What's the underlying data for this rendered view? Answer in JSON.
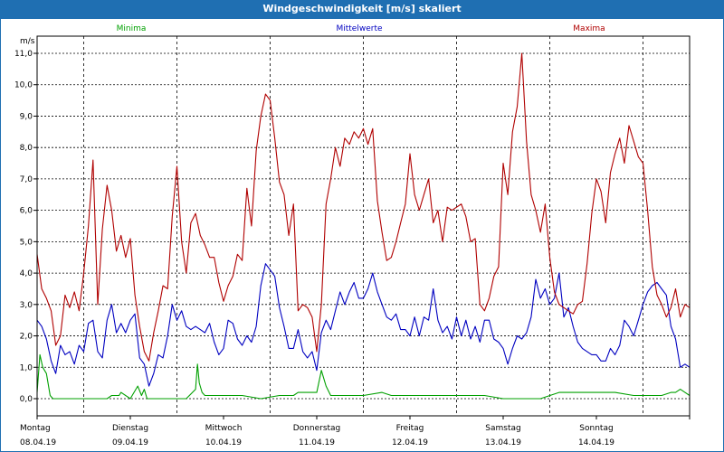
{
  "chart_data": {
    "type": "line",
    "title": "Windgeschwindigkeit [m/s] skaliert",
    "unit": "m/s",
    "ylim": [
      0,
      11.5
    ],
    "yticks": [
      "0,0",
      "1,0",
      "2,0",
      "3,0",
      "4,0",
      "5,0",
      "6,0",
      "7,0",
      "8,0",
      "9,0",
      "10,0",
      "11,0"
    ],
    "xlim": [
      0,
      7
    ],
    "days": [
      {
        "day": "Montag",
        "date": "08.04.19"
      },
      {
        "day": "Dienstag",
        "date": "09.04.19"
      },
      {
        "day": "Mittwoch",
        "date": "10.04.19"
      },
      {
        "day": "Donnerstag",
        "date": "11.04.19"
      },
      {
        "day": "Freitag",
        "date": "12.04.19"
      },
      {
        "day": "Samstag",
        "date": "13.04.19"
      },
      {
        "day": "Sonntag",
        "date": "14.04.19"
      }
    ],
    "grid": true,
    "series": [
      {
        "name": "Minima",
        "color": "#00a000",
        "x": [
          0,
          0.03,
          0.06,
          0.1,
          0.14,
          0.17,
          0.2,
          0.25,
          0.4,
          0.6,
          0.75,
          0.8,
          0.88,
          0.9,
          1.0,
          1.08,
          1.12,
          1.15,
          1.18,
          1.3,
          1.4,
          1.5,
          1.6,
          1.7,
          1.72,
          1.74,
          1.77,
          1.8,
          1.9,
          2.0,
          2.2,
          2.4,
          2.6,
          2.75,
          2.8,
          2.85,
          3.0,
          3.05,
          3.1,
          3.15,
          3.2,
          3.3,
          3.5,
          3.7,
          3.8,
          3.9,
          4.0,
          4.2,
          4.4,
          4.6,
          4.8,
          5.0,
          5.2,
          5.4,
          5.6,
          5.8,
          6.0,
          6.2,
          6.4,
          6.6,
          6.7,
          6.8,
          6.85,
          6.9,
          6.95,
          7.0
        ],
        "y": [
          0.2,
          1.4,
          1.0,
          0.8,
          0.1,
          0.0,
          0.0,
          0.0,
          0.0,
          0.0,
          0.0,
          0.1,
          0.1,
          0.2,
          0.0,
          0.4,
          0.1,
          0.3,
          0.0,
          0.0,
          0.0,
          0.0,
          0.0,
          0.3,
          1.1,
          0.5,
          0.2,
          0.1,
          0.1,
          0.1,
          0.1,
          0.0,
          0.1,
          0.1,
          0.2,
          0.2,
          0.2,
          0.9,
          0.4,
          0.1,
          0.1,
          0.1,
          0.1,
          0.2,
          0.1,
          0.1,
          0.1,
          0.1,
          0.1,
          0.1,
          0.1,
          0.0,
          0.0,
          0.0,
          0.2,
          0.2,
          0.2,
          0.2,
          0.1,
          0.1,
          0.1,
          0.2,
          0.2,
          0.3,
          0.2,
          0.1
        ]
      },
      {
        "name": "Mittelwerte",
        "color": "#0000c0",
        "x": [
          0,
          0.05,
          0.1,
          0.15,
          0.2,
          0.25,
          0.3,
          0.35,
          0.4,
          0.45,
          0.5,
          0.55,
          0.6,
          0.65,
          0.7,
          0.75,
          0.8,
          0.85,
          0.9,
          0.95,
          1.0,
          1.05,
          1.1,
          1.15,
          1.2,
          1.25,
          1.3,
          1.35,
          1.4,
          1.45,
          1.5,
          1.55,
          1.6,
          1.65,
          1.7,
          1.75,
          1.8,
          1.85,
          1.9,
          1.95,
          2.0,
          2.05,
          2.1,
          2.15,
          2.2,
          2.25,
          2.3,
          2.35,
          2.4,
          2.45,
          2.5,
          2.55,
          2.6,
          2.65,
          2.7,
          2.75,
          2.8,
          2.85,
          2.9,
          2.95,
          3.0,
          3.05,
          3.1,
          3.15,
          3.2,
          3.25,
          3.3,
          3.35,
          3.4,
          3.45,
          3.5,
          3.55,
          3.6,
          3.65,
          3.7,
          3.75,
          3.8,
          3.85,
          3.9,
          3.95,
          4.0,
          4.05,
          4.1,
          4.15,
          4.2,
          4.25,
          4.3,
          4.35,
          4.4,
          4.45,
          4.5,
          4.55,
          4.6,
          4.65,
          4.7,
          4.75,
          4.8,
          4.85,
          4.9,
          4.95,
          5.0,
          5.05,
          5.1,
          5.15,
          5.2,
          5.25,
          5.3,
          5.35,
          5.4,
          5.45,
          5.5,
          5.55,
          5.6,
          5.65,
          5.7,
          5.75,
          5.8,
          5.85,
          5.9,
          5.95,
          6.0,
          6.05,
          6.1,
          6.15,
          6.2,
          6.25,
          6.3,
          6.35,
          6.4,
          6.45,
          6.5,
          6.55,
          6.6,
          6.65,
          6.7,
          6.75,
          6.8,
          6.85,
          6.9,
          6.95,
          7.0
        ],
        "y": [
          2.5,
          2.3,
          1.9,
          1.2,
          0.8,
          1.7,
          1.4,
          1.5,
          1.1,
          1.7,
          1.5,
          2.4,
          2.5,
          1.5,
          1.3,
          2.5,
          3.0,
          2.1,
          2.4,
          2.1,
          2.5,
          2.7,
          1.3,
          1.1,
          0.4,
          0.8,
          1.4,
          1.3,
          2.0,
          3.0,
          2.5,
          2.8,
          2.3,
          2.2,
          2.3,
          2.2,
          2.1,
          2.4,
          1.8,
          1.4,
          1.6,
          2.5,
          2.4,
          1.9,
          1.7,
          2.0,
          1.8,
          2.3,
          3.6,
          4.3,
          4.1,
          3.9,
          2.9,
          2.3,
          1.6,
          1.6,
          2.2,
          1.5,
          1.3,
          1.5,
          0.9,
          2.1,
          2.5,
          2.2,
          2.8,
          3.4,
          3.0,
          3.4,
          3.7,
          3.2,
          3.2,
          3.5,
          4.0,
          3.4,
          3.0,
          2.6,
          2.5,
          2.7,
          2.2,
          2.2,
          2.0,
          2.6,
          2.0,
          2.6,
          2.5,
          3.5,
          2.5,
          2.1,
          2.3,
          1.9,
          2.6,
          2.0,
          2.5,
          1.9,
          2.3,
          1.8,
          2.5,
          2.5,
          1.9,
          1.8,
          1.6,
          1.1,
          1.6,
          2.0,
          1.9,
          2.1,
          2.6,
          3.8,
          3.2,
          3.5,
          3.0,
          3.2,
          4.0,
          2.6,
          2.9,
          2.3,
          1.8,
          1.6,
          1.5,
          1.4,
          1.4,
          1.2,
          1.2,
          1.6,
          1.4,
          1.7,
          2.5,
          2.3,
          2.0,
          2.5,
          3.0,
          3.4,
          3.6,
          3.7,
          3.5,
          3.3,
          2.3,
          1.9,
          1.0,
          1.1,
          1.0
        ]
      },
      {
        "name": "Maxima",
        "color": "#b00000",
        "x": [
          0,
          0.05,
          0.1,
          0.15,
          0.2,
          0.25,
          0.3,
          0.35,
          0.4,
          0.45,
          0.5,
          0.55,
          0.6,
          0.65,
          0.7,
          0.75,
          0.8,
          0.85,
          0.9,
          0.95,
          1.0,
          1.05,
          1.1,
          1.15,
          1.2,
          1.25,
          1.3,
          1.35,
          1.4,
          1.45,
          1.5,
          1.55,
          1.6,
          1.65,
          1.7,
          1.75,
          1.8,
          1.85,
          1.9,
          1.95,
          2.0,
          2.05,
          2.1,
          2.15,
          2.2,
          2.25,
          2.3,
          2.35,
          2.4,
          2.45,
          2.5,
          2.55,
          2.6,
          2.65,
          2.7,
          2.75,
          2.8,
          2.85,
          2.9,
          2.95,
          3.0,
          3.05,
          3.1,
          3.15,
          3.2,
          3.25,
          3.3,
          3.35,
          3.4,
          3.45,
          3.5,
          3.55,
          3.6,
          3.65,
          3.7,
          3.75,
          3.8,
          3.85,
          3.9,
          3.95,
          4.0,
          4.05,
          4.1,
          4.15,
          4.2,
          4.25,
          4.3,
          4.35,
          4.4,
          4.45,
          4.5,
          4.55,
          4.6,
          4.65,
          4.7,
          4.75,
          4.8,
          4.85,
          4.9,
          4.95,
          5.0,
          5.05,
          5.1,
          5.15,
          5.2,
          5.25,
          5.3,
          5.35,
          5.4,
          5.45,
          5.5,
          5.55,
          5.6,
          5.65,
          5.7,
          5.75,
          5.8,
          5.85,
          5.9,
          5.95,
          6.0,
          6.05,
          6.1,
          6.15,
          6.2,
          6.25,
          6.3,
          6.35,
          6.4,
          6.45,
          6.5,
          6.55,
          6.6,
          6.65,
          6.7,
          6.75,
          6.8,
          6.85,
          6.9,
          6.95,
          7.0
        ],
        "y": [
          4.6,
          3.5,
          3.2,
          2.8,
          1.7,
          2.0,
          3.3,
          2.9,
          3.4,
          2.8,
          4.0,
          5.5,
          7.6,
          3.0,
          5.4,
          6.8,
          6.0,
          4.7,
          5.2,
          4.5,
          5.1,
          3.3,
          2.3,
          1.5,
          1.2,
          2.1,
          2.8,
          3.6,
          3.5,
          5.8,
          7.4,
          5.0,
          4.0,
          5.6,
          5.9,
          5.2,
          4.9,
          4.5,
          4.5,
          3.7,
          3.1,
          3.6,
          3.9,
          4.6,
          4.4,
          6.7,
          5.5,
          7.9,
          9.0,
          9.7,
          9.5,
          8.3,
          6.9,
          6.5,
          5.2,
          6.2,
          2.8,
          3.0,
          2.9,
          2.6,
          1.5,
          3.0,
          6.2,
          7.0,
          8.0,
          7.4,
          8.3,
          8.1,
          8.5,
          8.3,
          8.6,
          8.1,
          8.6,
          6.3,
          5.3,
          4.4,
          4.5,
          5.0,
          5.6,
          6.2,
          7.8,
          6.5,
          6.0,
          6.5,
          7.0,
          5.6,
          6.0,
          5.0,
          6.1,
          6.0,
          6.1,
          6.2,
          5.8,
          5.0,
          5.1,
          3.0,
          2.8,
          3.2,
          3.9,
          4.2,
          7.5,
          6.5,
          8.5,
          9.3,
          11.0,
          8.2,
          6.5,
          6.0,
          5.3,
          6.2,
          4.5,
          3.4,
          3.0,
          2.9,
          2.8,
          2.7,
          3.0,
          3.1,
          4.3,
          5.9,
          7.0,
          6.6,
          5.6,
          7.2,
          7.8,
          8.3,
          7.5,
          8.7,
          8.2,
          7.7,
          7.5,
          6.0,
          4.2,
          3.3,
          3.0,
          2.6,
          2.9,
          3.5,
          2.6,
          3.0,
          2.9
        ]
      }
    ]
  }
}
